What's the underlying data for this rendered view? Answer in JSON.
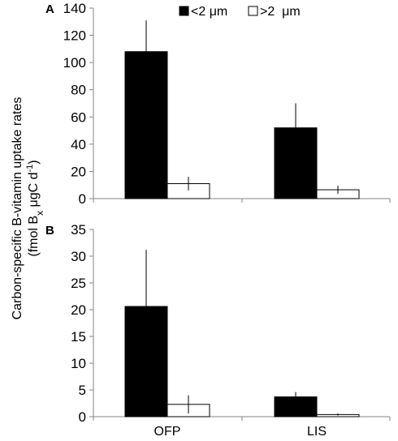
{
  "chart_data": {
    "type": "bar",
    "categories": [
      "OFP",
      "LIS"
    ],
    "legend": {
      "placement": "top-right",
      "entries": [
        {
          "name": "<2 μm",
          "color": "#000000"
        },
        {
          "name": ">2  μm",
          "color": "#ffffff"
        }
      ]
    },
    "ylabel": {
      "line1": "Carbon-specific B-vitamin uptake rates",
      "line2_prefix": "(fmol B",
      "line2_sub": "x",
      "line2_mid": " μgC d",
      "line2_sup": "-1",
      "line2_suffix": ")"
    },
    "panels": [
      {
        "label": "A",
        "ylim": [
          0,
          140
        ],
        "yticks": [
          0,
          20,
          40,
          60,
          80,
          100,
          120,
          140
        ],
        "grid": false,
        "series": [
          {
            "name": "<2 μm",
            "color": "#000000",
            "values": [
              108,
              52
            ],
            "errors": [
              23,
              18
            ]
          },
          {
            "name": ">2  μm",
            "color": "#ffffff",
            "values": [
              11,
              6.5
            ],
            "errors": [
              5,
              3
            ]
          }
        ]
      },
      {
        "label": "B",
        "ylim": [
          0,
          35
        ],
        "yticks": [
          0,
          5,
          10,
          15,
          20,
          25,
          30,
          35
        ],
        "grid": false,
        "series": [
          {
            "name": "<2 μm",
            "color": "#000000",
            "values": [
              20.6,
              3.7
            ],
            "errors": [
              10.6,
              0.9
            ]
          },
          {
            "name": ">2  μm",
            "color": "#ffffff",
            "values": [
              2.3,
              0.4
            ],
            "errors": [
              1.7,
              0.2
            ]
          }
        ]
      }
    ]
  }
}
